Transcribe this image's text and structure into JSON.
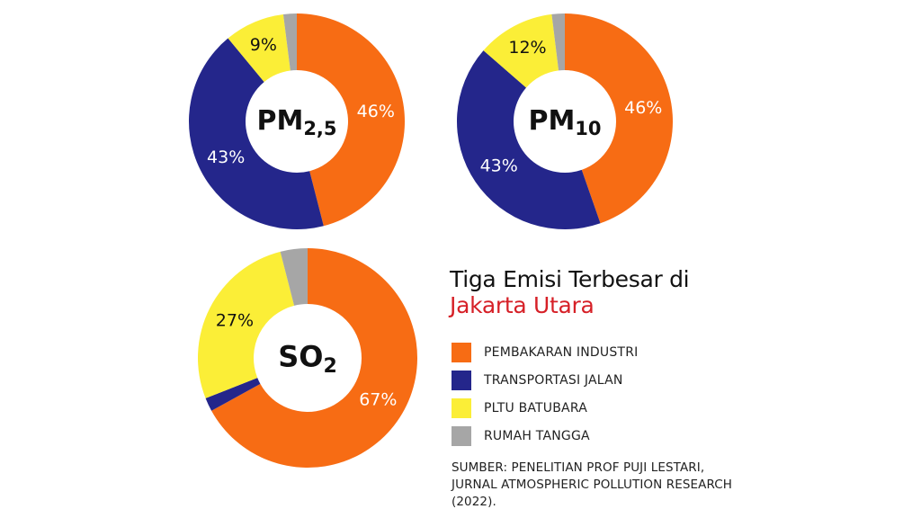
{
  "colors": {
    "industry": "#f76c14",
    "transport": "#24268b",
    "coal": "#fbee37",
    "household": "#a6a6a6",
    "title_accent": "#d62027"
  },
  "title": {
    "line1": "Tiga Emisi Terbesar di",
    "line2": "Jakarta Utara"
  },
  "legend": [
    {
      "label": "PEMBAKARAN INDUSTRI",
      "color": "#f76c14"
    },
    {
      "label": "TRANSPORTASI JALAN",
      "color": "#24268b"
    },
    {
      "label": "PLTU BATUBARA",
      "color": "#fbee37"
    },
    {
      "label": "RUMAH TANGGA",
      "color": "#a6a6a6"
    }
  ],
  "source": "SUMBER: PENELITIAN PROF PUJI LESTARI, JURNAL ATMOSPHERIC POLLUTION RESEARCH (2022).",
  "chart_data": [
    {
      "type": "pie",
      "label": "PM",
      "label_sub": "2,5",
      "categories": [
        "PEMBAKARAN INDUSTRI",
        "TRANSPORTASI JALAN",
        "PLTU BATUBARA",
        "RUMAH TANGGA"
      ],
      "values": [
        46,
        43,
        9,
        2
      ],
      "value_labels": [
        "46%",
        "43%",
        "9%",
        ""
      ]
    },
    {
      "type": "pie",
      "label": "PM",
      "label_sub": "10",
      "categories": [
        "PEMBAKARAN INDUSTRI",
        "TRANSPORTASI JALAN",
        "PLTU BATUBARA",
        "RUMAH TANGGA"
      ],
      "values": [
        46,
        43,
        12,
        2
      ],
      "value_labels": [
        "46%",
        "43%",
        "12%",
        ""
      ]
    },
    {
      "type": "pie",
      "label": "SO",
      "label_sub": "2",
      "categories": [
        "PEMBAKARAN INDUSTRI",
        "TRANSPORTASI JALAN",
        "PLTU BATUBARA",
        "RUMAH TANGGA"
      ],
      "values": [
        67,
        2,
        27,
        4
      ],
      "value_labels": [
        "67%",
        "",
        "27%",
        ""
      ]
    }
  ]
}
